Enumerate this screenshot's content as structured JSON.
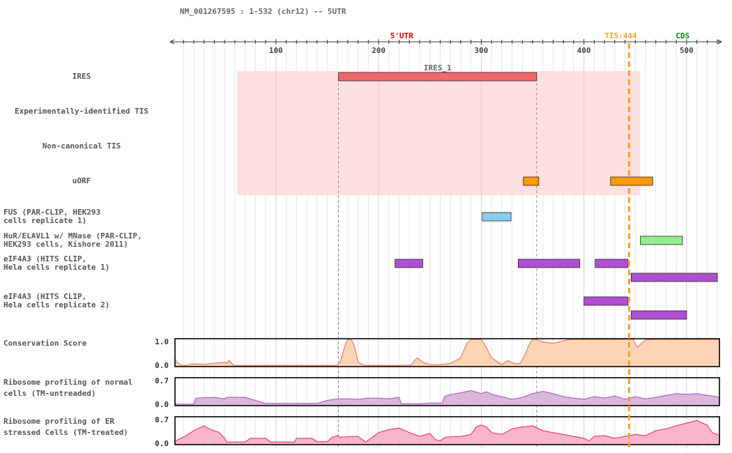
{
  "header": {
    "title": "NM_001267595 : 1-532 (chr12) -- 5UTR"
  },
  "axis": {
    "range": [
      1,
      532
    ],
    "major_ticks": [
      100,
      200,
      300,
      400,
      500
    ],
    "minor_step": 10
  },
  "markers": {
    "utr_label": "5'UTR",
    "tis_label": "TIS:444",
    "tis_position": 444,
    "cds_label": "CDS",
    "colors": {
      "utr": "#dd0000",
      "tis": "#f5a020",
      "cds": "#008800"
    }
  },
  "region_guides": [
    161,
    354
  ],
  "tracks": [
    {
      "id": "ires",
      "label_lines": [
        "IRES"
      ],
      "align": "center"
    },
    {
      "id": "exp_tis",
      "label_lines": [
        "Experimentally-identified TIS"
      ],
      "align": "center"
    },
    {
      "id": "noncanon",
      "label_lines": [
        "Non-canonical TIS"
      ],
      "align": "center"
    },
    {
      "id": "uorf",
      "label_lines": [
        "uORF"
      ],
      "align": "center"
    },
    {
      "id": "fus",
      "label_lines": [
        "FUS (PAR-CLIP, HEK293",
        "cells replicate 1)"
      ],
      "align": "left"
    },
    {
      "id": "hur",
      "label_lines": [
        "HuR/ELAVL1 w/ MNase (PAR-CLIP,",
        "HEK293 cells, Kishore 2011)"
      ],
      "align": "left"
    },
    {
      "id": "eif4a3_1",
      "label_lines": [
        "eIF4A3 (HITS CLIP,",
        "Hela cells replicate 1)"
      ],
      "align": "left"
    },
    {
      "id": "eif4a3_2",
      "label_lines": [
        "eIF4A3 (HITS CLIP,",
        "Hela cells replicate 2)"
      ],
      "align": "left"
    }
  ],
  "ires_region": {
    "start": 62,
    "end": 455,
    "color": "#ffe0e0"
  },
  "features": [
    {
      "track": "ires",
      "name": "IRES_1",
      "start": 161,
      "end": 354,
      "color": "#f26868"
    },
    {
      "track": "uorf",
      "name": "",
      "start": 341,
      "end": 356,
      "color": "#ff9900"
    },
    {
      "track": "uorf",
      "name": "",
      "start": 426,
      "end": 467,
      "color": "#ff9900"
    },
    {
      "track": "fus",
      "name": "",
      "start": 301,
      "end": 329,
      "color": "#87ceeb"
    },
    {
      "track": "hur",
      "name": "",
      "start": 455,
      "end": 496,
      "color": "#90ee90"
    },
    {
      "track": "eif4a3_1",
      "name": "",
      "start": 216,
      "end": 243,
      "color": "#b04fd3"
    },
    {
      "track": "eif4a3_1",
      "name": "",
      "start": 336,
      "end": 396,
      "color": "#b04fd3"
    },
    {
      "track": "eif4a3_1",
      "name": "",
      "start": 411,
      "end": 443,
      "color": "#b04fd3"
    },
    {
      "track": "eif4a3_1",
      "name": "",
      "start": 446,
      "end": 530,
      "color": "#b04fd3"
    },
    {
      "track": "eif4a3_2",
      "name": "",
      "start": 400,
      "end": 443,
      "color": "#b04fd3"
    },
    {
      "track": "eif4a3_2",
      "name": "",
      "start": 446,
      "end": 500,
      "color": "#b04fd3"
    }
  ],
  "chart_data": [
    {
      "type": "area",
      "label_lines": [
        "Conservation Score"
      ],
      "ylim": [
        0,
        1
      ],
      "yticks": [
        "1.0",
        "0.0"
      ],
      "fill": "#fdd5b4",
      "stroke": "#e8665a",
      "x": [
        1,
        4,
        8,
        12,
        16,
        20,
        30,
        40,
        50,
        52,
        54,
        56,
        58,
        60,
        70,
        80,
        90,
        100,
        110,
        120,
        130,
        140,
        150,
        158,
        160,
        162,
        164,
        166,
        168,
        170,
        172,
        174,
        176,
        178,
        180,
        184,
        186,
        188,
        190,
        192,
        200,
        210,
        220,
        230,
        232,
        236,
        238,
        240,
        244,
        250,
        260,
        270,
        280,
        282,
        286,
        290,
        294,
        296,
        298,
        300,
        305,
        310,
        318,
        320,
        324,
        326,
        330,
        334,
        338,
        340,
        344,
        346,
        348,
        350,
        352,
        354,
        356,
        358,
        360,
        370,
        380,
        386,
        388,
        390,
        400,
        410,
        420,
        430,
        440,
        448,
        450,
        452,
        456,
        460,
        470,
        480,
        490,
        500,
        510,
        520,
        528,
        532
      ],
      "y": [
        0.3,
        0.12,
        0.03,
        0.02,
        0.05,
        0.08,
        0.06,
        0.1,
        0.14,
        0.1,
        0.2,
        0.15,
        0.05,
        0.02,
        0.02,
        0.02,
        0.02,
        0.02,
        0.02,
        0.02,
        0.02,
        0.02,
        0.02,
        0.02,
        0.03,
        0.1,
        0.3,
        0.6,
        0.85,
        1.0,
        1.0,
        0.95,
        0.8,
        0.5,
        0.15,
        0.05,
        0.03,
        0.02,
        0.02,
        0.02,
        0.02,
        0.02,
        0.02,
        0.03,
        0.05,
        0.25,
        0.3,
        0.22,
        0.12,
        0.05,
        0.05,
        0.1,
        0.3,
        0.5,
        0.85,
        1.0,
        1.0,
        1.0,
        1.0,
        1.0,
        0.7,
        0.3,
        0.1,
        0.05,
        0.15,
        0.2,
        0.12,
        0.08,
        0.1,
        0.22,
        0.55,
        0.75,
        0.9,
        1.0,
        1.0,
        1.0,
        0.95,
        0.95,
        0.9,
        0.85,
        0.95,
        1.0,
        0.98,
        1.0,
        1.0,
        1.0,
        1.0,
        1.0,
        1.0,
        1.0,
        0.85,
        0.7,
        0.85,
        0.98,
        1.0,
        1.0,
        1.0,
        1.0,
        1.0,
        1.0,
        1.0,
        0.98
      ]
    },
    {
      "type": "area",
      "label_lines": [
        "Ribosome profiling of normal",
        "cells (TM-untreaded)"
      ],
      "ylim": [
        0,
        0.7
      ],
      "yticks": [
        "0.7",
        "0.0"
      ],
      "fill": "#d9b8dc",
      "stroke": "#a052b5",
      "x": [
        1,
        20,
        22,
        40,
        50,
        52,
        70,
        90,
        100,
        140,
        150,
        160,
        170,
        180,
        190,
        200,
        210,
        220,
        222,
        240,
        250,
        262,
        264,
        270,
        280,
        290,
        300,
        305,
        310,
        320,
        330,
        340,
        350,
        360,
        370,
        380,
        390,
        400,
        410,
        420,
        430,
        440,
        450,
        460,
        470,
        480,
        490,
        500,
        510,
        520,
        530,
        532
      ],
      "y": [
        0.02,
        0.02,
        0.18,
        0.2,
        0.16,
        0.2,
        0.2,
        0.04,
        0.04,
        0.04,
        0.12,
        0.16,
        0.16,
        0.15,
        0.18,
        0.18,
        0.16,
        0.2,
        0.03,
        0.03,
        0.05,
        0.05,
        0.22,
        0.28,
        0.32,
        0.38,
        0.3,
        0.35,
        0.28,
        0.22,
        0.15,
        0.2,
        0.3,
        0.36,
        0.3,
        0.22,
        0.18,
        0.15,
        0.22,
        0.18,
        0.24,
        0.15,
        0.22,
        0.16,
        0.2,
        0.25,
        0.3,
        0.28,
        0.3,
        0.25,
        0.22,
        0.18
      ]
    },
    {
      "type": "area",
      "label_lines": [
        "Ribosome profiling of ER",
        "stressed Cells (TM-treated)"
      ],
      "ylim": [
        0,
        0.7
      ],
      "yticks": [
        "0.7",
        "0.0"
      ],
      "fill": "#f8b6c8",
      "stroke": "#e6245a",
      "x": [
        1,
        5,
        10,
        20,
        30,
        35,
        45,
        50,
        52,
        70,
        75,
        90,
        95,
        100,
        118,
        120,
        135,
        140,
        150,
        155,
        160,
        162,
        180,
        186,
        188,
        200,
        210,
        220,
        230,
        240,
        250,
        255,
        260,
        265,
        280,
        290,
        295,
        300,
        305,
        310,
        320,
        330,
        340,
        350,
        360,
        370,
        380,
        390,
        400,
        405,
        410,
        420,
        430,
        440,
        450,
        460,
        470,
        480,
        490,
        500,
        510,
        520,
        525,
        530,
        532
      ],
      "y": [
        0.05,
        0.12,
        0.18,
        0.35,
        0.48,
        0.4,
        0.3,
        0.15,
        0.05,
        0.05,
        0.15,
        0.15,
        0.05,
        0.05,
        0.05,
        0.15,
        0.15,
        0.06,
        0.06,
        0.18,
        0.22,
        0.18,
        0.2,
        0.08,
        0.06,
        0.3,
        0.38,
        0.42,
        0.3,
        0.2,
        0.28,
        0.12,
        0.08,
        0.18,
        0.2,
        0.25,
        0.45,
        0.5,
        0.45,
        0.3,
        0.25,
        0.4,
        0.45,
        0.48,
        0.35,
        0.3,
        0.25,
        0.2,
        0.15,
        0.08,
        0.2,
        0.22,
        0.15,
        0.2,
        0.25,
        0.22,
        0.35,
        0.4,
        0.48,
        0.55,
        0.62,
        0.5,
        0.3,
        0.25,
        0.22
      ]
    }
  ]
}
